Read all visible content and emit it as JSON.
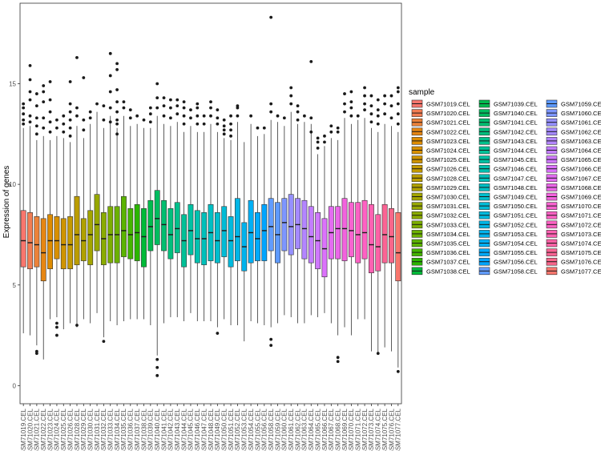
{
  "chart_data": {
    "type": "boxplot",
    "title": "",
    "xlabel": "",
    "ylabel": "Expression of genes",
    "ylim": [
      -0.9,
      19.0
    ],
    "yticks": [
      0,
      5,
      10,
      15
    ],
    "legend": {
      "title": "sample",
      "position": "right",
      "columns": 3
    },
    "categories": [
      "GSM71019.CEL",
      "GSM71020.CEL",
      "GSM71021.CEL",
      "GSM71022.CEL",
      "GSM71023.CEL",
      "GSM71024.CEL",
      "GSM71025.CEL",
      "GSM71026.CEL",
      "GSM71028.CEL",
      "GSM71029.CEL",
      "GSM71030.CEL",
      "GSM71031.CEL",
      "GSM71032.CEL",
      "GSM71033.CEL",
      "GSM71034.CEL",
      "GSM71035.CEL",
      "GSM71036.CEL",
      "GSM71037.CEL",
      "GSM71038.CEL",
      "GSM71039.CEL",
      "GSM71040.CEL",
      "GSM71041.CEL",
      "GSM71042.CEL",
      "GSM71043.CEL",
      "GSM71044.CEL",
      "GSM71045.CEL",
      "GSM71046.CEL",
      "GSM71047.CEL",
      "GSM71048.CEL",
      "GSM71049.CEL",
      "GSM71050.CEL",
      "GSM71051.CEL",
      "GSM71052.CEL",
      "GSM71053.CEL",
      "GSM71054.CEL",
      "GSM71055.CEL",
      "GSM71056.CEL",
      "GSM71058.CEL",
      "GSM71059.CEL",
      "GSM71060.CEL",
      "GSM71061.CEL",
      "GSM71062.CEL",
      "GSM71063.CEL",
      "GSM71064.CEL",
      "GSM71065.CEL",
      "GSM71066.CEL",
      "GSM71067.CEL",
      "GSM71068.CEL",
      "GSM71069.CEL",
      "GSM71070.CEL",
      "GSM71071.CEL",
      "GSM71072.CEL",
      "GSM71073.CEL",
      "GSM71074.CEL",
      "GSM71075.CEL",
      "GSM71076.CEL",
      "GSM71077.CEL"
    ],
    "colors": [
      "#F8766D",
      "#F27D53",
      "#EC8239",
      "#E68613",
      "#DE8C00",
      "#D89000",
      "#CF9400",
      "#C49A00",
      "#BB9D00",
      "#B0A100",
      "#A3A500",
      "#97A800",
      "#8AAB00",
      "#7CAE00",
      "#6BB100",
      "#5BB300",
      "#45B500",
      "#2BB600",
      "#00BA38",
      "#00BB4E",
      "#00BC5F",
      "#00BE70",
      "#00BF7D",
      "#00C08B",
      "#00C097",
      "#00C1A3",
      "#00C1AF",
      "#00C0BA",
      "#00BFC4",
      "#00BECD",
      "#00BCD6",
      "#00BADE",
      "#00B6E6",
      "#00B3ED",
      "#00B0F6",
      "#00ABFD",
      "#00A5FF",
      "#619CFF",
      "#5E9AFF",
      "#7D96FF",
      "#9590FF",
      "#A58AFF",
      "#B385FF",
      "#C27DFF",
      "#CF78FF",
      "#DB72FB",
      "#E36CF1",
      "#EB66E8",
      "#F263DD",
      "#F763D0",
      "#FB61C3",
      "#FF61C3",
      "#FE61B2",
      "#FD62A5",
      "#FB6494",
      "#F8668A",
      "#F8766D"
    ],
    "boxes": [
      {
        "q1": 5.9,
        "median": 7.2,
        "q3": 8.7,
        "lo": 2.6,
        "hi": 12.8,
        "outliers": [
          13.2,
          13.5,
          13.8,
          14.0,
          13.0
        ]
      },
      {
        "q1": 5.8,
        "median": 7.1,
        "q3": 8.6,
        "lo": 2.5,
        "hi": 12.9,
        "outliers": [
          13.4,
          14.2,
          14.6,
          15.2,
          15.9,
          13.1
        ]
      },
      {
        "q1": 5.9,
        "median": 7.0,
        "q3": 8.4,
        "lo": 2.0,
        "hi": 12.2,
        "outliers": [
          12.5,
          12.9,
          13.3,
          13.9,
          14.5,
          1.7,
          1.6
        ]
      },
      {
        "q1": 5.2,
        "median": 6.6,
        "q3": 8.3,
        "lo": 1.3,
        "hi": 12.4,
        "outliers": [
          12.8,
          13.3,
          14.1,
          14.6,
          14.9
        ]
      },
      {
        "q1": 5.8,
        "median": 7.2,
        "q3": 8.5,
        "lo": 3.3,
        "hi": 12.2,
        "outliers": [
          12.6,
          13.1,
          13.6,
          14.2,
          15.1
        ]
      },
      {
        "q1": 6.3,
        "median": 7.2,
        "q3": 8.4,
        "lo": 3.4,
        "hi": 12.4,
        "outliers": [
          12.8,
          13.2,
          3.1,
          2.9,
          2.5
        ]
      },
      {
        "q1": 5.8,
        "median": 7.0,
        "q3": 8.3,
        "lo": 2.8,
        "hi": 12.3,
        "outliers": [
          12.6,
          13.0,
          13.4
        ]
      },
      {
        "q1": 5.8,
        "median": 7.0,
        "q3": 8.4,
        "lo": 3.1,
        "hi": 12.1,
        "outliers": [
          12.4,
          12.8,
          13.2,
          13.6,
          14.0,
          15.1
        ]
      },
      {
        "q1": 6.0,
        "median": 7.5,
        "q3": 9.4,
        "lo": 2.9,
        "hi": 12.9,
        "outliers": [
          13.4,
          13.8,
          16.3,
          3.0
        ]
      },
      {
        "q1": 6.2,
        "median": 7.2,
        "q3": 8.3,
        "lo": 3.3,
        "hi": 12.3,
        "outliers": [
          12.7,
          13.2,
          15.3
        ]
      },
      {
        "q1": 6.0,
        "median": 7.5,
        "q3": 8.7,
        "lo": 3.1,
        "hi": 13.0,
        "outliers": [
          13.3,
          13.6
        ]
      },
      {
        "q1": 6.7,
        "median": 8.0,
        "q3": 9.5,
        "lo": 3.6,
        "hi": 13.6,
        "outliers": [
          14.0
        ]
      },
      {
        "q1": 6.0,
        "median": 7.3,
        "q3": 8.6,
        "lo": 2.4,
        "hi": 12.8,
        "outliers": [
          13.2,
          13.9,
          2.2
        ]
      },
      {
        "q1": 6.1,
        "median": 7.5,
        "q3": 8.9,
        "lo": 3.2,
        "hi": 13.4,
        "outliers": [
          13.8,
          14.6,
          15.4,
          16.5,
          13.1
        ]
      },
      {
        "q1": 6.1,
        "median": 7.5,
        "q3": 8.9,
        "lo": 3.0,
        "hi": 12.8,
        "outliers": [
          13.2,
          13.6,
          14.1,
          14.7,
          15.7,
          16.0,
          13.0,
          12.5
        ]
      },
      {
        "q1": 6.4,
        "median": 7.7,
        "q3": 9.4,
        "lo": 3.2,
        "hi": 13.4,
        "outliers": [
          13.8,
          14.1
        ]
      },
      {
        "q1": 6.3,
        "median": 7.5,
        "q3": 8.8,
        "lo": 3.3,
        "hi": 12.9,
        "outliers": [
          13.3,
          13.7
        ]
      },
      {
        "q1": 6.2,
        "median": 7.6,
        "q3": 9.0,
        "lo": 3.3,
        "hi": 13.0,
        "outliers": [
          13.4
        ]
      },
      {
        "q1": 5.9,
        "median": 7.4,
        "q3": 8.8,
        "lo": 3.3,
        "hi": 12.8,
        "outliers": [
          13.2
        ]
      },
      {
        "q1": 6.7,
        "median": 7.9,
        "q3": 9.2,
        "lo": 3.0,
        "hi": 12.8,
        "outliers": [
          13.1,
          13.5,
          13.8
        ]
      },
      {
        "q1": 7.0,
        "median": 8.3,
        "q3": 9.7,
        "lo": 1.5,
        "hi": 13.4,
        "outliers": [
          13.8,
          14.3,
          15.0,
          1.3,
          0.9,
          0.5
        ]
      },
      {
        "q1": 6.7,
        "median": 8.0,
        "q3": 9.2,
        "lo": 3.1,
        "hi": 13.0,
        "outliers": [
          13.4,
          13.9,
          14.3
        ]
      },
      {
        "q1": 6.3,
        "median": 7.5,
        "q3": 8.8,
        "lo": 3.4,
        "hi": 12.9,
        "outliers": [
          13.3,
          13.8,
          14.2
        ]
      },
      {
        "q1": 6.6,
        "median": 7.8,
        "q3": 9.1,
        "lo": 3.4,
        "hi": 13.1,
        "outliers": [
          13.5,
          13.9,
          14.2
        ]
      },
      {
        "q1": 5.9,
        "median": 7.2,
        "q3": 8.5,
        "lo": 3.2,
        "hi": 12.6,
        "outliers": [
          13.0,
          13.4,
          13.8,
          14.1
        ]
      },
      {
        "q1": 6.5,
        "median": 7.7,
        "q3": 9.0,
        "lo": 3.6,
        "hi": 12.9,
        "outliers": [
          13.3,
          13.7
        ]
      },
      {
        "q1": 6.1,
        "median": 7.3,
        "q3": 8.7,
        "lo": 3.2,
        "hi": 12.6,
        "outliers": [
          13.0,
          13.4,
          13.8,
          14.0
        ]
      },
      {
        "q1": 6.0,
        "median": 7.3,
        "q3": 8.6,
        "lo": 3.2,
        "hi": 12.6,
        "outliers": [
          13.0,
          13.4
        ]
      },
      {
        "q1": 6.2,
        "median": 7.6,
        "q3": 9.0,
        "lo": 3.2,
        "hi": 13.0,
        "outliers": [
          13.4,
          13.8,
          14.1
        ]
      },
      {
        "q1": 6.1,
        "median": 7.2,
        "q3": 8.6,
        "lo": 2.9,
        "hi": 12.6,
        "outliers": [
          13.0,
          13.3,
          13.7,
          2.6
        ]
      },
      {
        "q1": 6.4,
        "median": 7.7,
        "q3": 8.9,
        "lo": 3.3,
        "hi": 12.3,
        "outliers": [
          12.5,
          12.7,
          12.9,
          13.2
        ]
      },
      {
        "q1": 5.9,
        "median": 7.2,
        "q3": 8.4,
        "lo": 3.0,
        "hi": 12.2,
        "outliers": [
          12.4,
          12.7,
          13.0,
          13.4
        ]
      },
      {
        "q1": 6.2,
        "median": 7.4,
        "q3": 9.3,
        "lo": 3.0,
        "hi": 13.1,
        "outliers": [
          13.4,
          13.8,
          13.9
        ]
      },
      {
        "q1": 5.7,
        "median": 6.9,
        "q3": 8.1,
        "lo": 2.2,
        "hi": 12.1,
        "outliers": []
      },
      {
        "q1": 6.1,
        "median": 7.6,
        "q3": 9.2,
        "lo": 3.2,
        "hi": 13.0,
        "outliers": [
          13.4
        ]
      },
      {
        "q1": 6.2,
        "median": 7.3,
        "q3": 8.6,
        "lo": 3.1,
        "hi": 12.4,
        "outliers": [
          12.8
        ]
      },
      {
        "q1": 6.2,
        "median": 7.7,
        "q3": 9.0,
        "lo": 3.0,
        "hi": 12.5,
        "outliers": [
          12.8
        ]
      },
      {
        "q1": 6.7,
        "median": 7.9,
        "q3": 9.3,
        "lo": 2.9,
        "hi": 13.2,
        "outliers": [
          13.6,
          14.0,
          18.3,
          2.3,
          2.0
        ]
      },
      {
        "q1": 6.1,
        "median": 7.5,
        "q3": 9.1,
        "lo": 3.1,
        "hi": 13.1,
        "outliers": [
          13.4
        ]
      },
      {
        "q1": 6.7,
        "median": 8.1,
        "q3": 9.3,
        "lo": 3.5,
        "hi": 12.9,
        "outliers": [
          13.3
        ]
      },
      {
        "q1": 6.5,
        "median": 7.9,
        "q3": 9.5,
        "lo": 3.4,
        "hi": 13.6,
        "outliers": [
          14.0,
          14.4,
          14.8
        ]
      },
      {
        "q1": 6.8,
        "median": 8.0,
        "q3": 9.3,
        "lo": 3.1,
        "hi": 13.0,
        "outliers": [
          13.2,
          13.6,
          13.9
        ]
      },
      {
        "q1": 6.3,
        "median": 7.8,
        "q3": 9.2,
        "lo": 3.1,
        "hi": 13.1,
        "outliers": [
          13.4
        ]
      },
      {
        "q1": 6.1,
        "median": 7.4,
        "q3": 8.9,
        "lo": 3.5,
        "hi": 13.0,
        "outliers": [
          13.3,
          16.1,
          12.6
        ]
      },
      {
        "q1": 5.8,
        "median": 7.2,
        "q3": 8.6,
        "lo": 3.4,
        "hi": 11.5,
        "outliers": [
          11.8,
          12.1,
          12.3
        ]
      },
      {
        "q1": 5.4,
        "median": 6.8,
        "q3": 8.3,
        "lo": 3.6,
        "hi": 11.9,
        "outliers": [
          12.1,
          12.4
        ]
      },
      {
        "q1": 6.3,
        "median": 7.6,
        "q3": 8.9,
        "lo": 3.1,
        "hi": 12.3,
        "outliers": [
          12.6,
          12.9
        ]
      },
      {
        "q1": 6.3,
        "median": 7.8,
        "q3": 8.9,
        "lo": 2.5,
        "hi": 12.2,
        "outliers": [
          12.6,
          12.8,
          1.4,
          1.2
        ]
      },
      {
        "q1": 6.2,
        "median": 7.8,
        "q3": 9.3,
        "lo": 2.9,
        "hi": 13.3,
        "outliers": [
          13.6,
          14.0,
          14.5
        ]
      },
      {
        "q1": 6.4,
        "median": 7.7,
        "q3": 9.1,
        "lo": 2.5,
        "hi": 13.0,
        "outliers": [
          13.4,
          13.8,
          14.1,
          14.6
        ]
      },
      {
        "q1": 6.1,
        "median": 7.5,
        "q3": 9.1,
        "lo": 3.3,
        "hi": 13.2,
        "outliers": [
          13.4
        ]
      },
      {
        "q1": 6.3,
        "median": 7.6,
        "q3": 9.2,
        "lo": 3.3,
        "hi": 13.3,
        "outliers": [
          13.7,
          14.0,
          14.4,
          14.8
        ]
      },
      {
        "q1": 5.6,
        "median": 7.0,
        "q3": 9.0,
        "lo": 1.7,
        "hi": 12.8,
        "outliers": [
          13.1,
          13.5,
          13.9,
          14.4
        ]
      },
      {
        "q1": 5.7,
        "median": 6.9,
        "q3": 8.5,
        "lo": 1.6,
        "hi": 12.6,
        "outliers": [
          13.0,
          13.4,
          13.7,
          14.2,
          1.6
        ]
      },
      {
        "q1": 6.1,
        "median": 7.5,
        "q3": 9.0,
        "lo": 1.9,
        "hi": 13.0,
        "outliers": [
          13.5,
          14.0,
          14.4
        ]
      },
      {
        "q1": 6.1,
        "median": 7.4,
        "q3": 8.8,
        "lo": 1.7,
        "hi": 12.9,
        "outliers": [
          13.3,
          13.9,
          14.4
        ]
      },
      {
        "q1": 5.2,
        "median": 6.6,
        "q3": 8.6,
        "lo": 0.9,
        "hi": 12.6,
        "outliers": [
          13.0,
          13.5,
          14.0,
          14.6,
          14.8,
          0.7
        ]
      }
    ]
  }
}
